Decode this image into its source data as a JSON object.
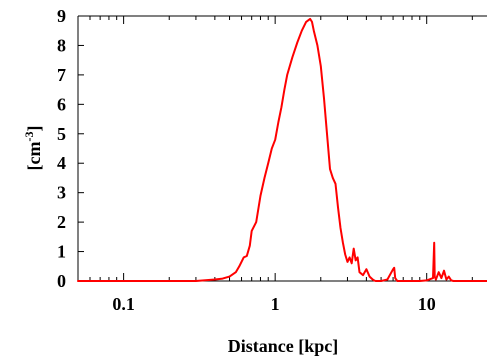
{
  "chart_data": {
    "type": "line",
    "xlabel": "Distance [kpc]",
    "ylabel": "[cm-3]",
    "ylabel_parts": {
      "base": "[cm",
      "sup": "-3",
      "close": "]"
    },
    "x_scale": "log",
    "xlim": [
      0.05,
      25
    ],
    "ylim": [
      0,
      9
    ],
    "x_ticks": [
      {
        "value": 0.1,
        "label": "0.1"
      },
      {
        "value": 1,
        "label": "1"
      },
      {
        "value": 10,
        "label": "10"
      }
    ],
    "y_ticks": [
      {
        "value": 0,
        "label": "0"
      },
      {
        "value": 1,
        "label": "1"
      },
      {
        "value": 2,
        "label": "2"
      },
      {
        "value": 3,
        "label": "3"
      },
      {
        "value": 4,
        "label": "4"
      },
      {
        "value": 5,
        "label": "5"
      },
      {
        "value": 6,
        "label": "6"
      },
      {
        "value": 7,
        "label": "7"
      },
      {
        "value": 8,
        "label": "8"
      },
      {
        "value": 9,
        "label": "9"
      }
    ],
    "grid": false,
    "series": [
      {
        "color": "#ff0000",
        "x": [
          0.05,
          0.1,
          0.2,
          0.3,
          0.4,
          0.45,
          0.5,
          0.55,
          0.58,
          0.62,
          0.65,
          0.68,
          0.7,
          0.75,
          0.8,
          0.85,
          0.9,
          0.95,
          1.0,
          1.05,
          1.1,
          1.15,
          1.2,
          1.3,
          1.4,
          1.5,
          1.6,
          1.7,
          1.75,
          1.8,
          1.9,
          2.0,
          2.1,
          2.2,
          2.3,
          2.4,
          2.5,
          2.6,
          2.7,
          2.8,
          2.9,
          3.0,
          3.1,
          3.2,
          3.3,
          3.4,
          3.5,
          3.6,
          3.8,
          4.0,
          4.2,
          4.4,
          4.5,
          4.6,
          4.8,
          5.0,
          5.5,
          6.0,
          6.1,
          6.2,
          6.4,
          7.0,
          8.0,
          9.0,
          10.0,
          11.0,
          11.2,
          11.3,
          11.5,
          12.0,
          12.5,
          13.0,
          13.5,
          14.0,
          14.5,
          15.0,
          20.0,
          25.0
        ],
        "y": [
          0,
          0,
          0,
          0,
          0.05,
          0.08,
          0.15,
          0.3,
          0.5,
          0.8,
          0.85,
          1.2,
          1.7,
          2.0,
          2.9,
          3.5,
          4.0,
          4.5,
          4.8,
          5.4,
          5.9,
          6.5,
          7.0,
          7.6,
          8.1,
          8.5,
          8.8,
          8.9,
          8.8,
          8.5,
          8.0,
          7.3,
          6.2,
          5.0,
          3.8,
          3.5,
          3.3,
          2.5,
          1.8,
          1.3,
          0.9,
          0.65,
          0.8,
          0.6,
          1.1,
          0.7,
          0.8,
          0.3,
          0.2,
          0.4,
          0.15,
          0.05,
          0.02,
          0,
          0,
          0,
          0.05,
          0.4,
          0.45,
          0.1,
          0,
          0,
          0,
          0,
          0.02,
          0.1,
          1.3,
          0.15,
          0.05,
          0.3,
          0.1,
          0.35,
          0.05,
          0.15,
          0.02,
          0,
          0,
          0
        ]
      }
    ]
  }
}
